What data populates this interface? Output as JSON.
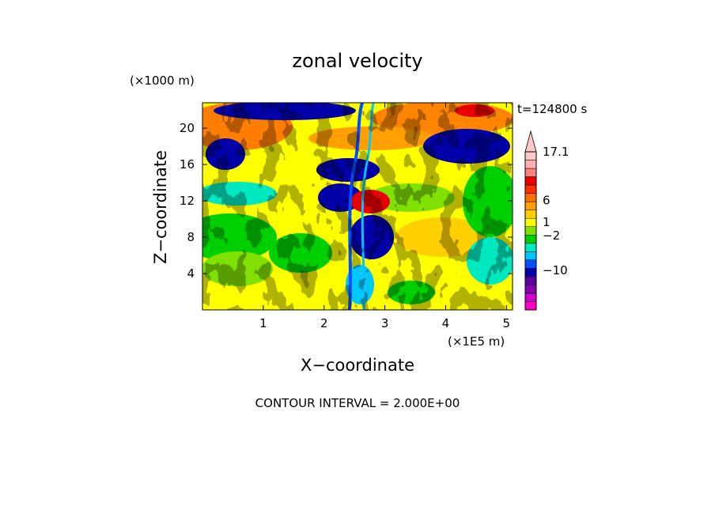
{
  "chart_data": {
    "type": "heatmap",
    "title": "zonal velocity",
    "xlabel": "X−coordinate",
    "ylabel": "Z−coordinate",
    "x_unit": "(×1E5 m)",
    "y_unit": "(×1000 m)",
    "time_label": "t=124800 s",
    "footer": "CONTOUR INTERVAL = 2.000E+00",
    "xlim": [
      0,
      5.1
    ],
    "ylim": [
      0,
      22.8
    ],
    "xticks": [
      1,
      2,
      3,
      4,
      5
    ],
    "yticks": [
      4,
      8,
      12,
      16,
      20
    ],
    "colorbar": {
      "labels": [
        {
          "text": "17.1",
          "value": 17.1
        },
        {
          "text": "6",
          "value": 6
        },
        {
          "text": "1",
          "value": 1
        },
        {
          "text": "−2",
          "value": -2
        },
        {
          "text": "−10",
          "value": -10
        }
      ],
      "colors": [
        "#ff00c0",
        "#d000d0",
        "#8800b0",
        "#5c00a0",
        "#0000a8",
        "#0050ff",
        "#00c8ff",
        "#00e8c0",
        "#00d000",
        "#80e000",
        "#ffff00",
        "#ffd000",
        "#ffa000",
        "#ff7000",
        "#ff3000",
        "#e80000",
        "#ff8080",
        "#ffb0b0",
        "#ffc8c8"
      ]
    },
    "contour_interval": 2.0
  }
}
